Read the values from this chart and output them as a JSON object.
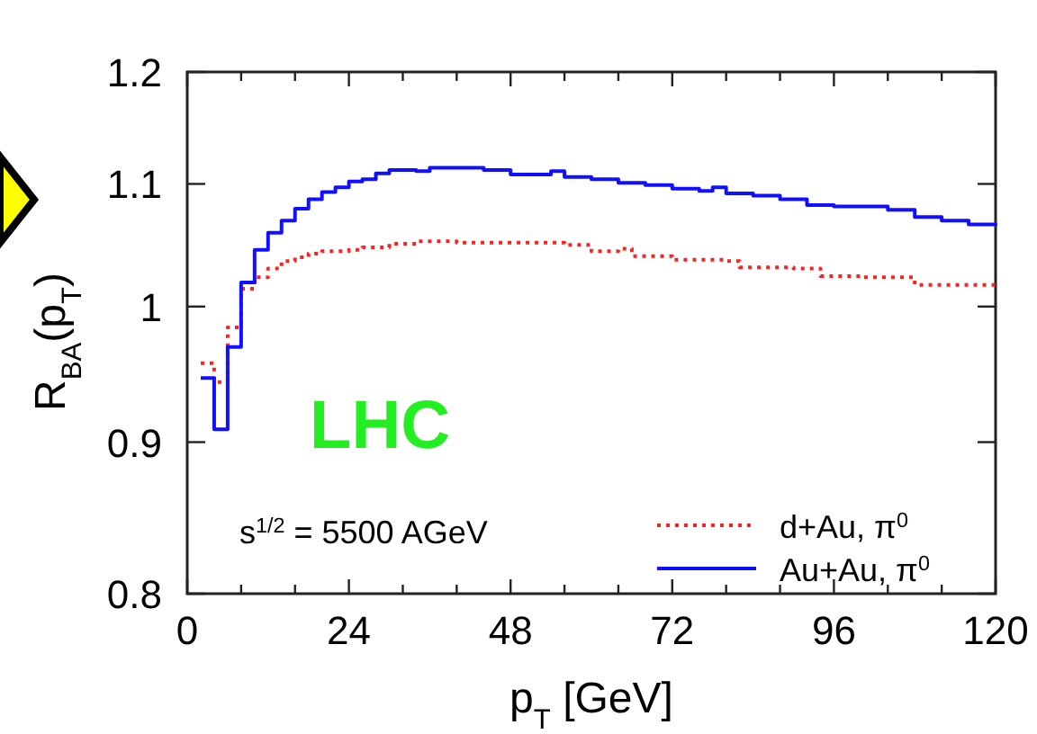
{
  "chart_data": {
    "type": "step",
    "xlabel": "p$_{T}$ [GeV]",
    "ylabel": "R$_{BA}$(p$_{T}$)",
    "log": "y",
    "xlim": [
      0,
      120
    ],
    "ylim": [
      0.8,
      1.2
    ],
    "xticks": [
      0,
      {
        "value": 8,
        "label": null
      },
      {
        "value": 16,
        "label": null
      },
      24,
      {
        "value": 32,
        "label": null
      },
      {
        "value": 40,
        "label": null
      },
      48,
      {
        "value": 56,
        "label": null
      },
      {
        "value": 64,
        "label": null
      },
      72,
      {
        "value": 80,
        "label": null
      },
      {
        "value": 88,
        "label": null
      },
      96,
      {
        "value": 104,
        "label": null
      },
      {
        "value": 112,
        "label": null
      },
      120
    ],
    "yticks": [
      0.8,
      0.9,
      1,
      1.1,
      1.2
    ],
    "legend": "bottom right",
    "annotations": [
      "LHC",
      "s$^{1/2}$ = 5500 AGeV"
    ],
    "series": [
      {
        "name": "d+Au, π$^{0}$",
        "color": "#ff2020",
        "line_style": "dotted",
        "x": [
          2,
          4,
          6,
          8,
          10,
          12,
          14,
          16,
          18,
          20,
          24,
          26,
          30,
          34,
          40,
          48,
          56,
          60,
          64,
          66,
          72,
          80,
          82,
          90,
          94,
          100,
          108,
          120
        ],
        "values": [
          0.957,
          0.943,
          0.984,
          1.014,
          1.023,
          1.03,
          1.036,
          1.039,
          1.042,
          1.044,
          1.045,
          1.047,
          1.05,
          1.052,
          1.051,
          1.051,
          1.049,
          1.044,
          1.046,
          1.04,
          1.037,
          1.036,
          1.031,
          1.03,
          1.024,
          1.023,
          1.017,
          1.016
        ]
      },
      {
        "name": "Au+Au, π$^{0}$",
        "color": "#1010ff",
        "line_style": "solid",
        "x": [
          2,
          4,
          6,
          8,
          10,
          12,
          14,
          16,
          18,
          20,
          22,
          24,
          26,
          28,
          30,
          34,
          36,
          44,
          48,
          54,
          56,
          60,
          64,
          68,
          72,
          76,
          78,
          80,
          84,
          88,
          92,
          96,
          100,
          104,
          108,
          112,
          116,
          120
        ],
        "values": [
          0.946,
          0.909,
          0.969,
          1.019,
          1.045,
          1.059,
          1.069,
          1.079,
          1.087,
          1.093,
          1.097,
          1.102,
          1.104,
          1.109,
          1.112,
          1.111,
          1.114,
          1.112,
          1.108,
          1.111,
          1.106,
          1.104,
          1.101,
          1.099,
          1.096,
          1.094,
          1.097,
          1.092,
          1.09,
          1.087,
          1.082,
          1.081,
          1.081,
          1.078,
          1.072,
          1.069,
          1.066,
          1.065
        ]
      }
    ]
  }
}
